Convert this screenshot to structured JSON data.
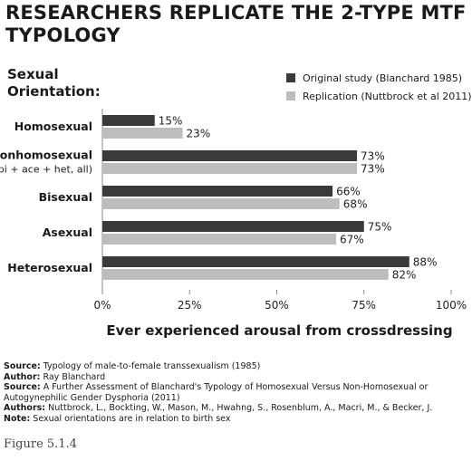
{
  "title": "RESEARCHERS REPLICATE THE 2-TYPE MTF TYPOLOGY",
  "y_axis_title_line1": "Sexual",
  "y_axis_title_line2": "Orientation:",
  "x_axis_title": "Ever experienced arousal from crossdressing",
  "colors": {
    "original": "#3a3a3a",
    "replication": "#bdbdbd",
    "axis": "#888888"
  },
  "chart_data": {
    "type": "bar",
    "orientation": "horizontal",
    "categories": [
      [
        "Homosexual"
      ],
      [
        "Nonhomosexual",
        "(bi + ace + het, all)"
      ],
      [
        "Bisexual"
      ],
      [
        "Asexual"
      ],
      [
        "Heterosexual"
      ]
    ],
    "series": [
      {
        "name": "Original study (Blanchard 1985)",
        "values": [
          15,
          73,
          66,
          75,
          88
        ]
      },
      {
        "name": "Replication (Nuttbrock et al 2011)",
        "values": [
          23,
          73,
          68,
          67,
          82
        ]
      }
    ],
    "value_labels": [
      [
        "15%",
        "73%",
        "66%",
        "75%",
        "88%"
      ],
      [
        "23%",
        "73%",
        "68%",
        "67%",
        "82%"
      ]
    ],
    "xlim": [
      0,
      100
    ],
    "xticks": [
      0,
      25,
      50,
      75,
      100
    ],
    "xtick_labels": [
      "0%",
      "25%",
      "50%",
      "75%",
      "100%"
    ],
    "legend_position": "top-right",
    "grid": false
  },
  "sources": [
    {
      "label": "Source:",
      "text": " Typology of male-to-female transsexualism (1985)"
    },
    {
      "label": "Author:",
      "text": " Ray Blanchard"
    },
    {
      "label": "Source:",
      "text": " A Further Assessment of Blanchard's Typology of Homosexual Versus Non-Homosexual or"
    },
    {
      "label": "",
      "text": "Autogynephilic Gender Dysphoria (2011)"
    },
    {
      "label": "Authors:",
      "text": " Nuttbrock, L., Bockting, W., Mason, M., Hwahng, S., Rosenblum, A., Macri, M., & Becker, J."
    },
    {
      "label": "Note:",
      "text": " Sexual orientations are in relation to birth sex"
    }
  ],
  "figure_caption": "Figure 5.1.4"
}
